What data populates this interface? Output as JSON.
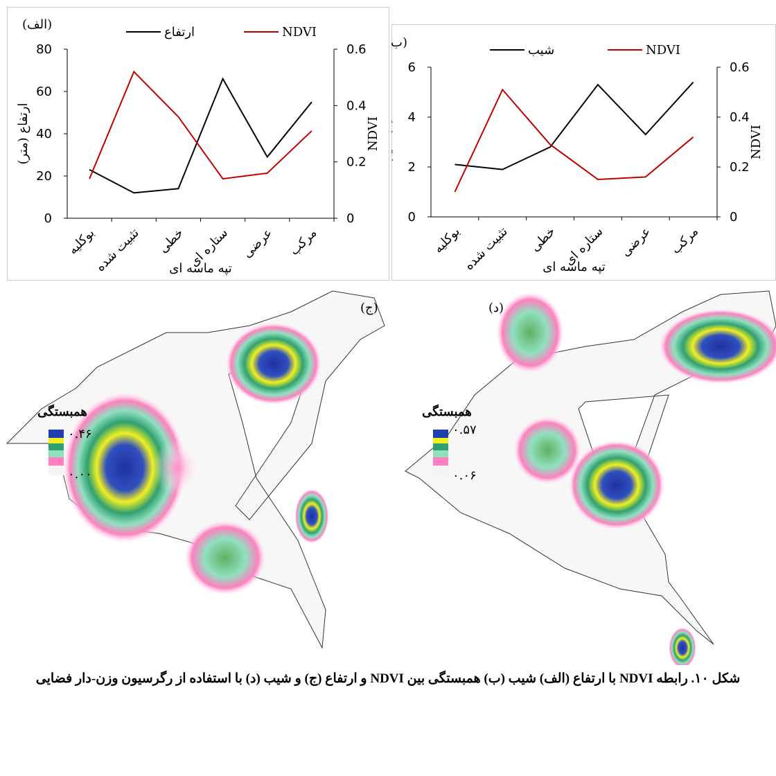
{
  "chart_data": [
    {
      "type": "line",
      "panel_label": "(الف)",
      "xlabel": "تپه ماسه ای",
      "ylabel": "ارتفاع (متر)",
      "y2label": "NDVI",
      "categories": [
        "بوکلیه",
        "تثبیت شده",
        "خطی",
        "ستاره ای",
        "عرضی",
        "مرکب"
      ],
      "series": [
        {
          "name": "ارتفاع",
          "color": "#000000",
          "values": [
            23,
            12,
            14,
            66,
            29,
            55
          ]
        },
        {
          "name": "NDVI",
          "color": "#c00000",
          "axis": "y2",
          "values": [
            0.14,
            0.52,
            0.36,
            0.14,
            0.16,
            0.31
          ]
        }
      ],
      "ylim": [
        0,
        80
      ],
      "yticks": [
        0,
        20,
        40,
        60,
        80
      ],
      "y2lim": [
        0,
        0.6
      ],
      "y2ticks": [
        0,
        0.2,
        0.4,
        0.6
      ]
    },
    {
      "type": "line",
      "panel_label": "(ب)",
      "xlabel": "تپه ماسه ای",
      "ylabel": "شیب (٪)",
      "y2label": "NDVI",
      "categories": [
        "بوکلیه",
        "تثبیت شده",
        "خطی",
        "ستاره ای",
        "عرضی",
        "مرکب"
      ],
      "series": [
        {
          "name": "شیب",
          "color": "#000000",
          "values": [
            2.1,
            1.9,
            2.8,
            5.3,
            3.3,
            5.4
          ]
        },
        {
          "name": "NDVI",
          "color": "#c00000",
          "axis": "y2",
          "values": [
            0.1,
            0.51,
            0.29,
            0.15,
            0.16,
            0.32
          ]
        }
      ],
      "ylim": [
        0,
        6
      ],
      "yticks": [
        0,
        2,
        4,
        6
      ],
      "y2lim": [
        0,
        0.6
      ],
      "y2ticks": [
        0,
        0.2,
        0.4,
        0.6
      ]
    }
  ],
  "maps": [
    {
      "panel_label": "(ج)",
      "legend_title": "همبستگی",
      "legend_max": "۰.۴۶",
      "legend_min": "۰.۰۰"
    },
    {
      "panel_label": "(د)",
      "legend_title": "همبستگی",
      "legend_max": "۰.۵۷",
      "legend_min": "۰.۰۶"
    }
  ],
  "caption": "شکل ۱۰. رابطه NDVI با ارتفاع (الف) شیب (ب) همبستگی بین NDVI و ارتفاع (ج) و شیب (د) با استفاده از رگرسیون وزن-دار فضایی"
}
